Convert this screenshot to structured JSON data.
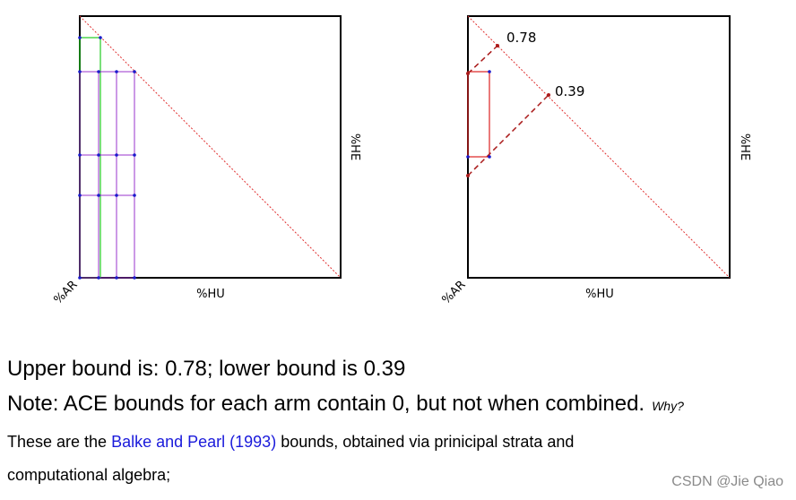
{
  "figures": {
    "left": {
      "x_label": "%HU",
      "y_label": "%HE",
      "corner_label": "%AR"
    },
    "right": {
      "x_label": "%HU",
      "y_label": "%HE",
      "corner_label": "%AR",
      "upper_value": "0.78",
      "lower_value": "0.39"
    }
  },
  "text": {
    "line1": "Upper bound is: 0.78; lower bound is 0.39",
    "line2": "Note: ACE bounds for each arm contain 0, but not when combined.",
    "why": "Why?",
    "line3_before": "These are the ",
    "line3_link": "Balke and Pearl (1993)",
    "line3_after": " bounds, obtained via prinicipal strata and",
    "line4": "computational algebra;"
  },
  "watermark": "CSDN @Jie Qiao",
  "colors": {
    "diagonal": "#e03030",
    "green": "#22cc22",
    "purple": "#9933cc",
    "blue_point": "#1a1acc",
    "red_box": "#dd2222",
    "dashed": "#aa1a1a"
  }
}
